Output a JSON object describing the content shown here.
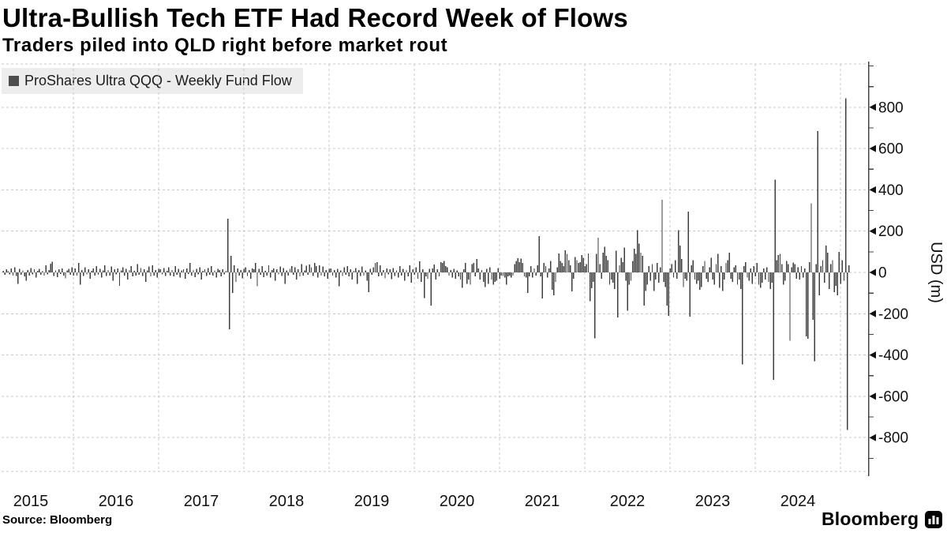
{
  "header": {
    "title": "Ultra-Bullish Tech ETF Had Record Week of Flows",
    "subtitle": "Traders piled into QLD right before market rout"
  },
  "legend": {
    "label": "ProShares Ultra QQQ - Weekly Fund Flow",
    "swatch_color": "#4d4d4d"
  },
  "footer": {
    "source": "Source: Bloomberg",
    "brand": "Bloomberg"
  },
  "chart_data": {
    "type": "bar",
    "title": "Ultra-Bullish Tech ETF Had Record Week of Flows",
    "subtitle": "Traders piled into QLD right before market rout",
    "series_name": "ProShares Ultra QQQ - Weekly Fund Flow",
    "frequency": "weekly",
    "bar_color": "#3d3d3d",
    "grid_color": "#c9c9c9",
    "axis_color": "#444444",
    "ylabel": "USD (m)",
    "ylim": [
      -960,
      1010
    ],
    "y_ticks": [
      800,
      600,
      400,
      200,
      0,
      -200,
      -400,
      -600,
      -800
    ],
    "y_minor_ticks": [
      1000,
      900,
      700,
      500,
      300,
      100,
      -100,
      -300,
      -500,
      -700,
      -900
    ],
    "x_year_labels": [
      2015,
      2016,
      2017,
      2018,
      2019,
      2020,
      2021,
      2022,
      2023,
      2024
    ],
    "x_gridline_years": [
      2016,
      2017,
      2018,
      2019,
      2020,
      2021,
      2022,
      2023,
      2024,
      2025
    ],
    "start_year": 2015.17,
    "points_per_year": 52,
    "values": [
      8,
      -12,
      15,
      6,
      -10,
      20,
      -15,
      25,
      -18,
      -55,
      18,
      -12,
      10,
      -20,
      -40,
      12,
      -15,
      22,
      -10,
      15,
      -25,
      8,
      18,
      -12,
      6,
      -15,
      35,
      -10,
      12,
      42,
      52,
      -18,
      10,
      -22,
      15,
      -8,
      20,
      -15,
      -28,
      10,
      18,
      -12,
      25,
      -15,
      20,
      -15,
      45,
      -60,
      12,
      -18,
      25,
      -10,
      15,
      -30,
      8,
      20,
      -15,
      30,
      -12,
      18,
      -25,
      10,
      35,
      -18,
      12,
      -15,
      28,
      -40,
      15,
      -10,
      20,
      -65,
      10,
      25,
      -15,
      18,
      -35,
      12,
      30,
      -20,
      8,
      -15,
      40,
      -12,
      22,
      -18,
      15,
      -45,
      10,
      28,
      -20,
      35,
      -15,
      12,
      -25,
      18,
      15,
      -10,
      22,
      -18,
      8,
      25,
      -15,
      12,
      -20,
      30,
      -12,
      18,
      -25,
      10,
      15,
      -30,
      20,
      -8,
      45,
      -15,
      12,
      -22,
      18,
      -10,
      25,
      -35,
      8,
      15,
      -18,
      22,
      -12,
      30,
      -15,
      10,
      -25,
      18,
      12,
      -20,
      15,
      -10,
      8,
      260,
      -275,
      80,
      -100,
      35,
      -45,
      20,
      -15,
      12,
      -28,
      18,
      25,
      -18,
      12,
      -30,
      20,
      15,
      46,
      -67,
      18,
      -12,
      30,
      -22,
      8,
      -15,
      35,
      -25,
      12,
      20,
      -40,
      15,
      -10,
      28,
      -18,
      22,
      -55,
      10,
      -15,
      18,
      30,
      -12,
      25,
      -35,
      15,
      -20,
      40,
      -15,
      10,
      32,
      -12,
      38,
      25,
      -18,
      45,
      30,
      -25,
      35,
      -15,
      28,
      -20,
      12,
      -30,
      18,
      20,
      -15,
      12,
      -25,
      18,
      -67,
      10,
      -18,
      25,
      -12,
      30,
      -20,
      15,
      -35,
      8,
      22,
      -55,
      12,
      -18,
      28,
      -15,
      10,
      -40,
      -96,
      18,
      -12,
      25,
      45,
      50,
      -20,
      35,
      -15,
      12,
      -28,
      20,
      -10,
      15,
      -32,
      22,
      -18,
      10,
      -25,
      30,
      -15,
      18,
      -40,
      12,
      -20,
      35,
      -50,
      15,
      -12,
      25,
      -30,
      53,
      -45,
      15,
      -125,
      -20,
      -30,
      18,
      -160,
      20,
      38,
      -35,
      15,
      -20,
      50,
      45,
      55,
      30,
      25,
      -15,
      12,
      -25,
      18,
      -30,
      10,
      -20,
      -35,
      -75,
      15,
      45,
      -55,
      -35,
      -60,
      40,
      45,
      -20,
      65,
      20,
      -35,
      12,
      -45,
      -70,
      18,
      -55,
      25,
      -35,
      -60,
      -45,
      -40,
      22,
      -30,
      -15,
      -18,
      -25,
      -60,
      -20,
      -15,
      -25,
      -15,
      40,
      55,
      69,
      50,
      67,
      45,
      -20,
      -25,
      -99,
      -20,
      30,
      -25,
      20,
      -15,
      35,
      176,
      -20,
      -126,
      45,
      30,
      -25,
      20,
      55,
      -84,
      -111,
      -45,
      25,
      92,
      55,
      45,
      30,
      107,
      90,
      60,
      35,
      -92,
      -30,
      75,
      60,
      45,
      50,
      85,
      70,
      30,
      40,
      92,
      -140,
      -77,
      -45,
      -320,
      90,
      168,
      40,
      -30,
      95,
      125,
      80,
      60,
      -60,
      -35,
      -50,
      -80,
      105,
      -218,
      35,
      70,
      50,
      120,
      -40,
      -185,
      -60,
      -40,
      55,
      115,
      90,
      205,
      140,
      95,
      80,
      -160,
      -90,
      -60,
      30,
      -40,
      40,
      -90,
      -35,
      45,
      -50,
      25,
      352,
      -45,
      -70,
      -160,
      -210,
      20,
      40,
      -25,
      60,
      -30,
      205,
      130,
      65,
      -70,
      -30,
      -40,
      295,
      -215,
      35,
      60,
      -35,
      -55,
      -40,
      -85,
      -70,
      30,
      55,
      -30,
      -45,
      25,
      70,
      -35,
      -60,
      40,
      90,
      -75,
      30,
      -90,
      -35,
      45,
      60,
      95,
      -30,
      -45,
      25,
      35,
      -60,
      -35,
      -80,
      -445,
      30,
      50,
      -25,
      -40,
      20,
      -55,
      30,
      -20,
      45,
      -60,
      -75,
      -50,
      20,
      -35,
      25,
      -45,
      -80,
      -50,
      -520,
      450,
      60,
      85,
      90,
      40,
      -60,
      -40,
      55,
      40,
      -330,
      25,
      48,
      40,
      -30,
      25,
      -35,
      30,
      -25,
      20,
      -310,
      -322,
      50,
      334,
      -230,
      -430,
      40,
      685,
      -110,
      30,
      60,
      -50,
      130,
      95,
      -80,
      40,
      60,
      -95,
      -65,
      -110,
      100,
      -55,
      60,
      -40,
      843,
      -763,
      35
    ]
  }
}
